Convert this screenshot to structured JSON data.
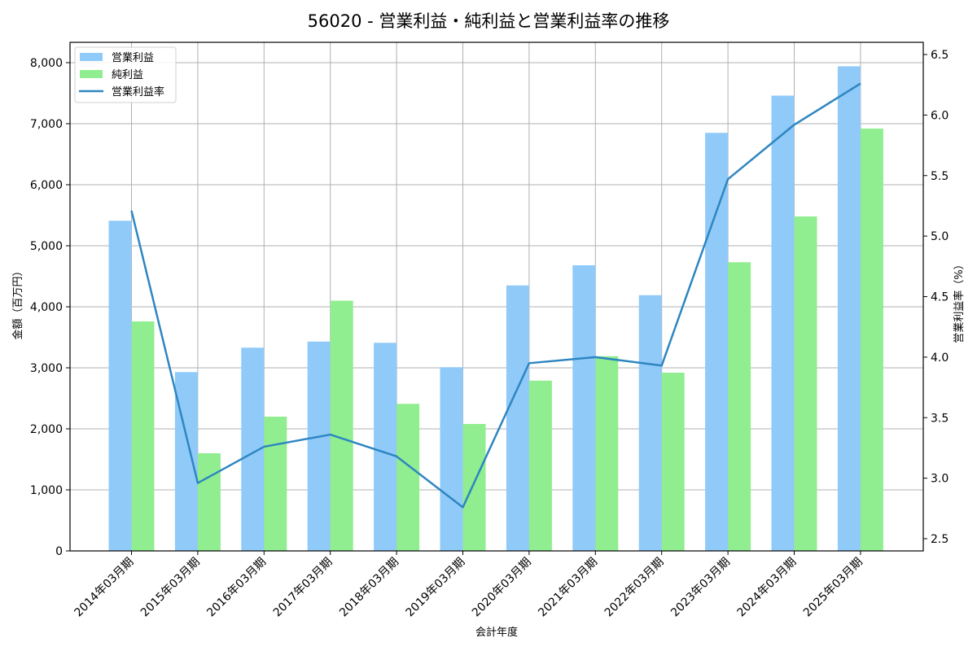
{
  "title": "56020 - 営業利益・純利益と営業利益率の推移",
  "colors": {
    "operating_profit": "#90caf9",
    "net_profit": "#90ee90",
    "margin_line": "#2e86c1",
    "grid": "#b0b0b0"
  },
  "chart_data": {
    "type": "bar",
    "title": "56020 - 営業利益・純利益と営業利益率の推移",
    "xlabel": "会計年度",
    "ylabel": "金額（百万円）",
    "y2label": "営業利益率（%）",
    "ylim": [
      0,
      8300
    ],
    "y2lim": [
      2.4,
      6.6
    ],
    "yticks": [
      0,
      1000,
      2000,
      3000,
      4000,
      5000,
      6000,
      7000,
      8000
    ],
    "ytick_labels": [
      "0",
      "1,000",
      "2,000",
      "3,000",
      "4,000",
      "5,000",
      "6,000",
      "7,000",
      "8,000"
    ],
    "y2ticks": [
      2.5,
      3.0,
      3.5,
      4.0,
      4.5,
      5.0,
      5.5,
      6.0,
      6.5
    ],
    "y2tick_labels": [
      "2.5",
      "3.0",
      "3.5",
      "4.0",
      "4.5",
      "5.0",
      "5.5",
      "6.0",
      "6.5"
    ],
    "grid": true,
    "legend_position": "upper left",
    "categories": [
      "2014年03月期",
      "2015年03月期",
      "2016年03月期",
      "2017年03月期",
      "2018年03月期",
      "2019年03月期",
      "2020年03月期",
      "2021年03月期",
      "2022年03月期",
      "2023年03月期",
      "2024年03月期",
      "2025年03月期"
    ],
    "series": [
      {
        "name": "営業利益",
        "type": "bar",
        "axis": "left",
        "values": [
          5410,
          2930,
          3330,
          3430,
          3410,
          3010,
          4350,
          4680,
          4190,
          6850,
          7460,
          7940
        ]
      },
      {
        "name": "純利益",
        "type": "bar",
        "axis": "left",
        "values": [
          3760,
          1600,
          2200,
          4100,
          2410,
          2080,
          2790,
          3190,
          2920,
          4730,
          5480,
          6920
        ]
      },
      {
        "name": "営業利益率",
        "type": "line",
        "axis": "right",
        "values": [
          5.21,
          2.96,
          3.26,
          3.36,
          3.18,
          2.76,
          3.95,
          4.0,
          3.93,
          5.47,
          5.92,
          6.26
        ]
      }
    ]
  }
}
